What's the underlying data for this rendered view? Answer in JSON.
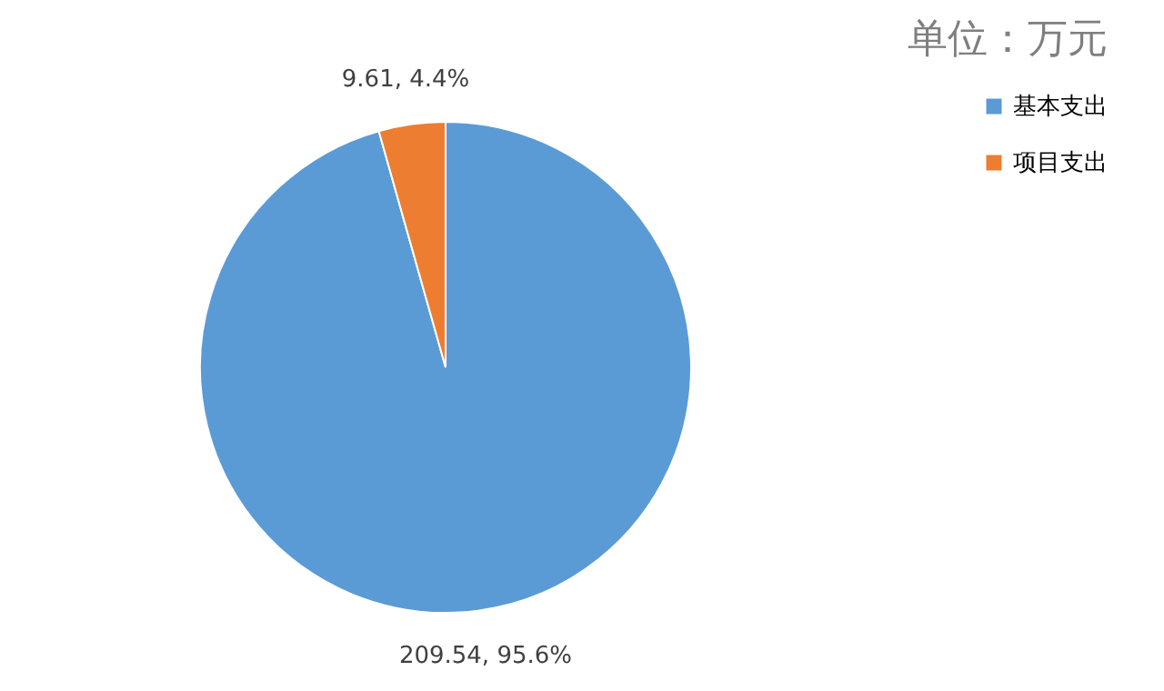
{
  "chart_data": {
    "type": "pie",
    "title": "单位：万元",
    "categories": [
      "基本支出",
      "项目支出"
    ],
    "values": [
      209.54,
      9.61
    ],
    "colors": [
      "#5b9bd5",
      "#ed7d31"
    ],
    "value_labels": [
      "209.54, 95.6%",
      "9.61, 4.4%"
    ],
    "legend": "right"
  }
}
